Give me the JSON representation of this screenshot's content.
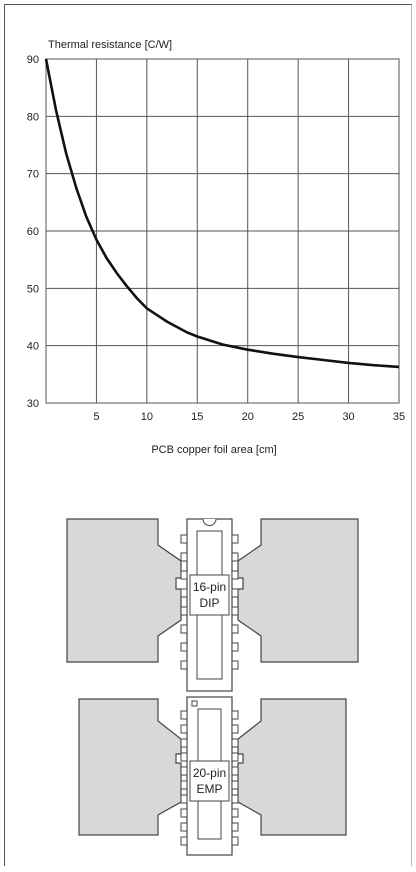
{
  "chart_data": {
    "type": "line",
    "title": "",
    "ylabel": "Thermal resistance [C/W]",
    "xlabel": "PCB copper foil area [cm]",
    "xlim": [
      0,
      35
    ],
    "ylim": [
      30,
      90
    ],
    "xticks": [
      5,
      10,
      15,
      20,
      25,
      30,
      35
    ],
    "yticks": [
      90,
      80,
      70,
      60,
      50,
      40,
      30
    ],
    "grid": true,
    "series": [
      {
        "x": [
          0,
          1,
          2,
          3,
          4,
          5,
          6,
          7,
          8,
          9,
          10,
          12,
          14,
          15,
          17.5,
          20,
          22.5,
          25,
          27.5,
          30,
          32.5,
          35
        ],
        "y": [
          90,
          81,
          73.5,
          67.5,
          62.5,
          58.5,
          55.3,
          52.7,
          50.4,
          48.3,
          46.5,
          44.2,
          42.3,
          41.6,
          40.2,
          39.3,
          38.6,
          38.0,
          37.5,
          37.0,
          36.6,
          36.3
        ]
      }
    ]
  },
  "packages": [
    {
      "line1": "16-pin",
      "line2": "DIP"
    },
    {
      "line1": "20-pin",
      "line2": "EMP"
    }
  ],
  "colors": {
    "pad": "#d8d8d8",
    "outline": "#444444",
    "curve": "#111111",
    "grid": "#555555"
  }
}
